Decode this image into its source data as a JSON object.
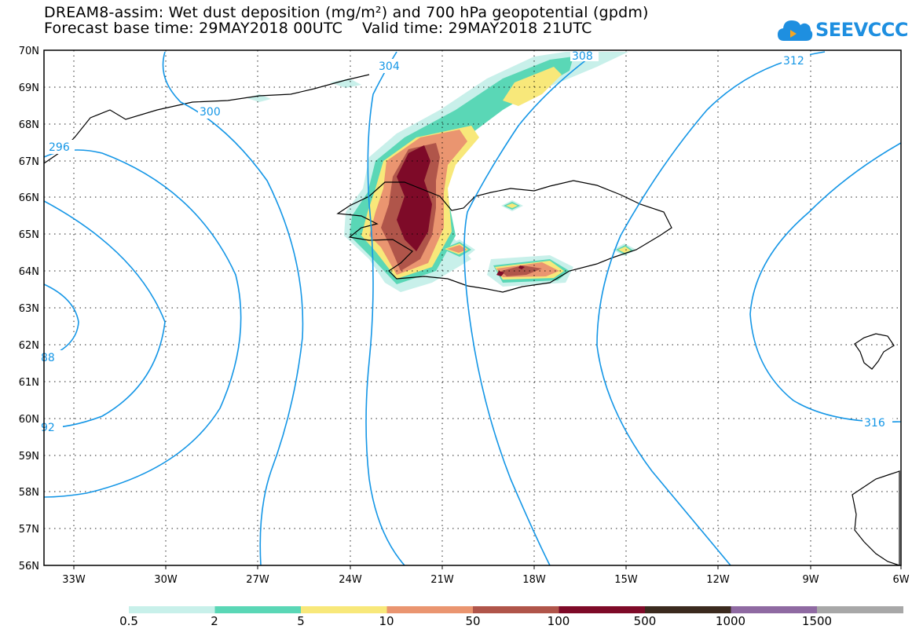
{
  "header": {
    "title_line1": "DREAM8-assim: Wet dust deposition (mg/m²) and 700 hPa geopotential (gpdm)",
    "title_line2": "Forecast base time: 29MAY2018 00UTC    Valid time: 29MAY2018 21UTC"
  },
  "logo": {
    "text": "SEEVCCC",
    "icon": "cloud-icon",
    "color": "#1e8fe0"
  },
  "map": {
    "latitude_labels": [
      "70N",
      "69N",
      "68N",
      "67N",
      "66N",
      "65N",
      "64N",
      "63N",
      "62N",
      "61N",
      "60N",
      "59N",
      "58N",
      "57N",
      "56N"
    ],
    "longitude_labels": [
      "33W",
      "30W",
      "27W",
      "24W",
      "21W",
      "18W",
      "15W",
      "12W",
      "9W",
      "6W"
    ],
    "contour_color": "#1496e6",
    "contour_labels": {
      "c288": "88",
      "c292": "92",
      "c296": "296",
      "c300": "300",
      "c304": "304",
      "c308": "308",
      "c312": "312",
      "c316": "316"
    }
  },
  "colorbar": {
    "colors": [
      "#c8f0ea",
      "#5ad7b6",
      "#f8e87a",
      "#ea9570",
      "#b0554a",
      "#7e0a28",
      "#3b2a1e",
      "#8f6aa2",
      "#a8a8a8"
    ],
    "labels": [
      "0.5",
      "2",
      "5",
      "10",
      "50",
      "100",
      "500",
      "1000",
      "1500"
    ]
  }
}
